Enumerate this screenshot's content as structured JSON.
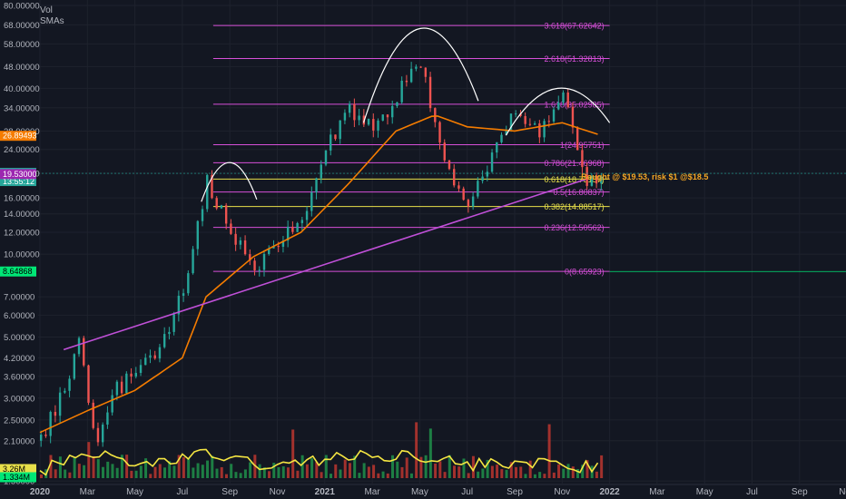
{
  "legend": {
    "vol": "Vol",
    "smas": "SMAs"
  },
  "chart_data": {
    "type": "candlestick",
    "scale": "log",
    "ylim": [
      1.62,
      80
    ],
    "y_ticks": [
      "80.00000",
      "68.00000",
      "58.00000",
      "48.00000",
      "40.00000",
      "34.00000",
      "28.00000",
      "24.00000",
      "19.65000",
      "16.00000",
      "14.00000",
      "12.00000",
      "10.00000",
      "7.00000",
      "6.00000",
      "5.00000",
      "4.20000",
      "3.60000",
      "3.00000",
      "2.50000",
      "2.10000",
      "1.50000"
    ],
    "x_ticks": [
      "2020",
      "Mar",
      "May",
      "Jul",
      "Sep",
      "Nov",
      "2021",
      "Mar",
      "May",
      "Jul",
      "Sep",
      "Nov",
      "2022",
      "Mar",
      "May",
      "Jul",
      "Sep",
      "Nov"
    ],
    "price_badges": [
      {
        "text": "26.89493",
        "value": 26.89493,
        "color": "#f57c00"
      },
      {
        "text": "19.65000",
        "value": 19.65,
        "color": "#26a69a",
        "sub": "13:55:12"
      },
      {
        "text": "19.53000",
        "value": 19.53,
        "color": "#9c27b0"
      },
      {
        "text": "8.64868",
        "value": 8.64868,
        "color": "#00e676"
      },
      {
        "text": "3.26M",
        "value": null,
        "color": "#e8e04a"
      },
      {
        "text": "1.334M",
        "value": null,
        "color": "#00e676"
      }
    ],
    "fib_levels": [
      {
        "label": "3.618(67.62642)",
        "value": 67.62642,
        "color": "#d64fd8"
      },
      {
        "label": "2.618(51.32813)",
        "value": 51.32813,
        "color": "#d64fd8"
      },
      {
        "label": "1.618(35.02985)",
        "value": 35.02985,
        "color": "#d64fd8"
      },
      {
        "label": "1(24.95751)",
        "value": 24.95751,
        "color": "#d64fd8"
      },
      {
        "label": "0.786(21.46968)",
        "value": 21.46968,
        "color": "#d64fd8"
      },
      {
        "label": "0.618(18.73157)",
        "value": 18.73157,
        "color": "#e8e04a"
      },
      {
        "label": "0.5(16.80837)",
        "value": 16.80837,
        "color": "#d64fd8"
      },
      {
        "label": "0.382(14.88517)",
        "value": 14.88517,
        "color": "#e8e04a"
      },
      {
        "label": "0.236(12.50562)",
        "value": 12.50562,
        "color": "#d64fd8"
      },
      {
        "label": "0(8.65923)",
        "value": 8.65923,
        "color": "#d64fd8"
      }
    ],
    "annotation": {
      "text": "Bought @ $19.53, risk $1 @$18.5",
      "value": 18.5,
      "color": "#f5a623"
    },
    "trendline": {
      "from": [
        "2020-02",
        4.5
      ],
      "to": [
        "2021-12",
        18.7
      ],
      "color": "#c050d8"
    },
    "price_path": [
      [
        "2020-01",
        2.1
      ],
      [
        "2020-02",
        3.3
      ],
      [
        "2020-02-20",
        4.8
      ],
      [
        "2020-03-10",
        1.9
      ],
      [
        "2020-04",
        3.1
      ],
      [
        "2020-05",
        3.8
      ],
      [
        "2020-06",
        4.5
      ],
      [
        "2020-07",
        7.5
      ],
      [
        "2020-08",
        18.5
      ],
      [
        "2020-09",
        12
      ],
      [
        "2020-10",
        9
      ],
      [
        "2020-11",
        11
      ],
      [
        "2020-12",
        13
      ],
      [
        "2021-01",
        24
      ],
      [
        "2021-02",
        34
      ],
      [
        "2021-03",
        28
      ],
      [
        "2021-04",
        38
      ],
      [
        "2021-05",
        51
      ],
      [
        "2021-06",
        22
      ],
      [
        "2021-07",
        15
      ],
      [
        "2021-08",
        23
      ],
      [
        "2021-09",
        34
      ],
      [
        "2021-10",
        27
      ],
      [
        "2021-11",
        37
      ],
      [
        "2021-12",
        18.5
      ],
      [
        "2021-12-20",
        19.6
      ]
    ],
    "sma_path": [
      [
        "2020-01",
        2.25
      ],
      [
        "2020-03",
        2.7
      ],
      [
        "2020-05",
        3.2
      ],
      [
        "2020-07",
        4.2
      ],
      [
        "2020-08",
        7
      ],
      [
        "2020-10",
        9.8
      ],
      [
        "2020-12",
        12
      ],
      [
        "2021-02",
        18
      ],
      [
        "2021-04",
        28
      ],
      [
        "2021-05-20",
        32
      ],
      [
        "2021-07",
        29
      ],
      [
        "2021-09",
        28
      ],
      [
        "2021-11",
        30
      ],
      [
        "2021-12-20",
        27
      ]
    ],
    "volume_avg_path": [
      [
        "2020-01",
        1.33
      ],
      [
        "2020-03",
        1.6
      ],
      [
        "2020-05",
        1.4
      ],
      [
        "2020-08",
        1.55
      ],
      [
        "2020-11",
        1.38
      ],
      [
        "2021-01",
        1.5
      ],
      [
        "2021-05",
        1.55
      ],
      [
        "2021-07",
        1.4
      ],
      [
        "2021-09",
        1.45
      ],
      [
        "2021-12-20",
        1.36
      ]
    ],
    "arcs": [
      {
        "from": [
          "2020-07-25",
          15.5
        ],
        "peak": [
          "2020-08-30",
          21.5
        ],
        "to": [
          "2020-10-05",
          15.8
        ]
      },
      {
        "from": [
          "2021-02-20",
          30
        ],
        "peak": [
          "2021-05-01",
          66
        ],
        "to": [
          "2021-07-15",
          36
        ]
      },
      {
        "from": [
          "2021-08-20",
          27
        ],
        "peak": [
          "2021-10-25",
          40
        ],
        "to": [
          "2021-12-31",
          30
        ]
      }
    ]
  }
}
